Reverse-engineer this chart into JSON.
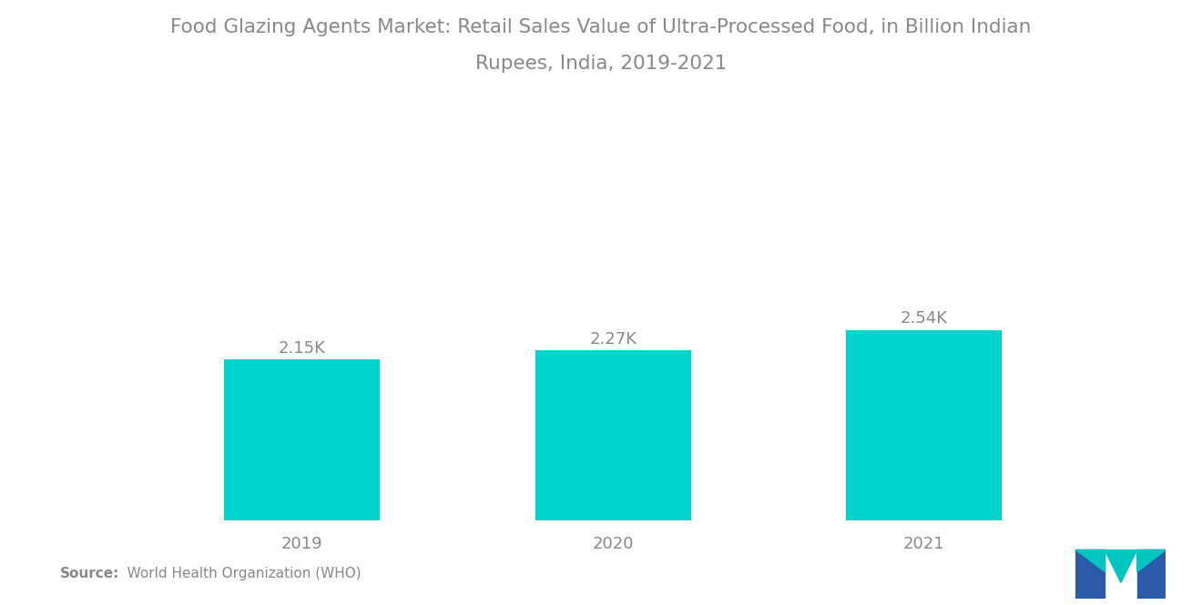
{
  "title_line1": "Food Glazing Agents Market: Retail Sales Value of Ultra-Processed Food, in Billion Indian",
  "title_line2": "Rupees, India, 2019-2021",
  "categories": [
    "2019",
    "2020",
    "2021"
  ],
  "values": [
    2150,
    2270,
    2540
  ],
  "labels": [
    "2.15K",
    "2.27K",
    "2.54K"
  ],
  "bar_color": "#00D4CC",
  "background_color": "#FFFFFF",
  "title_color": "#888888",
  "label_color": "#888888",
  "tick_color": "#888888",
  "source_bold": "Source:",
  "source_rest": "   World Health Organization (WHO)",
  "ylim": [
    0,
    4200
  ],
  "bar_width": 0.5,
  "title_fontsize": 15.5,
  "label_fontsize": 13,
  "tick_fontsize": 13,
  "source_fontsize": 11,
  "logo_blue": "#2B5BA8",
  "logo_teal": "#00C4C0"
}
